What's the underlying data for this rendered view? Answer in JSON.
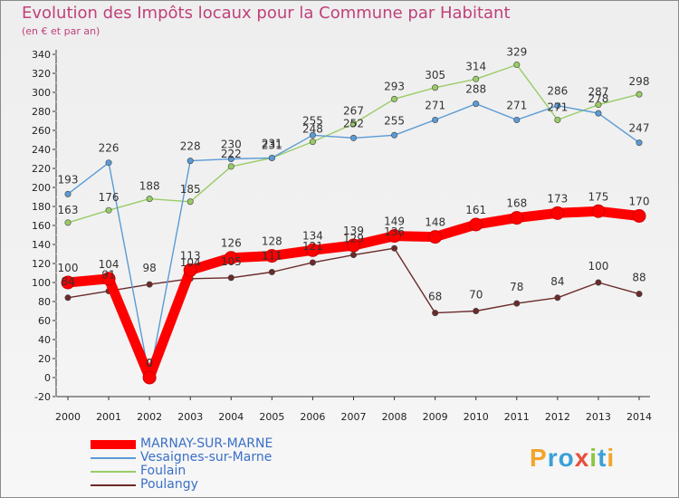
{
  "title": "Evolution des Impôts locaux pour la Commune par Habitant",
  "subtitle": "(en € et par an)",
  "logo": {
    "letters": [
      "P",
      "r",
      "o",
      "x",
      "i",
      "t",
      "i"
    ],
    "colors": [
      "#f2a52a",
      "#3aa0d8",
      "#3aa0d8",
      "#e94e3c",
      "#8cc63f",
      "#3aa0d8",
      "#f2a52a"
    ]
  },
  "chart_data": {
    "type": "line",
    "title": "Evolution des Impôts locaux pour la Commune par Habitant",
    "subtitle": "(en € et par an)",
    "categories": [
      "2000",
      "2001",
      "2002",
      "2003",
      "2004",
      "2005",
      "2006",
      "2007",
      "2008",
      "2009",
      "2010",
      "2011",
      "2012",
      "2013",
      "2014"
    ],
    "ylim": [
      -20,
      340
    ],
    "yticks": [
      -20,
      0,
      20,
      40,
      60,
      80,
      100,
      120,
      140,
      160,
      180,
      200,
      220,
      240,
      260,
      280,
      300,
      320,
      340
    ],
    "grid": false,
    "legend_position": "bottom-left",
    "series": [
      {
        "name": "MARNAY-SUR-MARNE",
        "color": "#ff0000",
        "values": [
          100,
          104,
          0,
          113,
          126,
          128,
          134,
          139,
          149,
          148,
          161,
          168,
          173,
          175,
          170
        ],
        "labels": [
          "100",
          "104",
          "0",
          "113",
          "126",
          "128",
          "134",
          "139",
          "149",
          "148",
          "161",
          "168",
          "173",
          "175",
          "170"
        ]
      },
      {
        "name": "Vesaignes-sur-Marne",
        "color": "#5a9bd5",
        "values": [
          193,
          226,
          0,
          228,
          230,
          231,
          255,
          252,
          255,
          271,
          288,
          271,
          286,
          278,
          247
        ],
        "labels": [
          "193",
          "226",
          "0",
          "228",
          "230",
          "231",
          "255",
          "252",
          "255",
          "271",
          "288",
          "271",
          "286",
          "278",
          "247"
        ]
      },
      {
        "name": "Foulain",
        "color": "#99cc66",
        "values": [
          163,
          176,
          188,
          185,
          222,
          231,
          248,
          267,
          293,
          305,
          314,
          329,
          271,
          287,
          298
        ],
        "labels": [
          "163",
          "176",
          "188",
          "185",
          "222",
          "231",
          "248",
          "267",
          "293",
          "305",
          "314",
          "329",
          "271",
          "287",
          "298"
        ]
      },
      {
        "name": "Poulangy",
        "color": "#6b2a2a",
        "values": [
          84,
          91,
          98,
          104,
          105,
          111,
          121,
          129,
          136,
          68,
          70,
          78,
          84,
          100,
          88
        ],
        "labels": [
          "84",
          "91",
          "98",
          "104",
          "105",
          "111",
          "121",
          "129",
          "136",
          "68",
          "70",
          "78",
          "84",
          "100",
          "88"
        ]
      }
    ]
  }
}
